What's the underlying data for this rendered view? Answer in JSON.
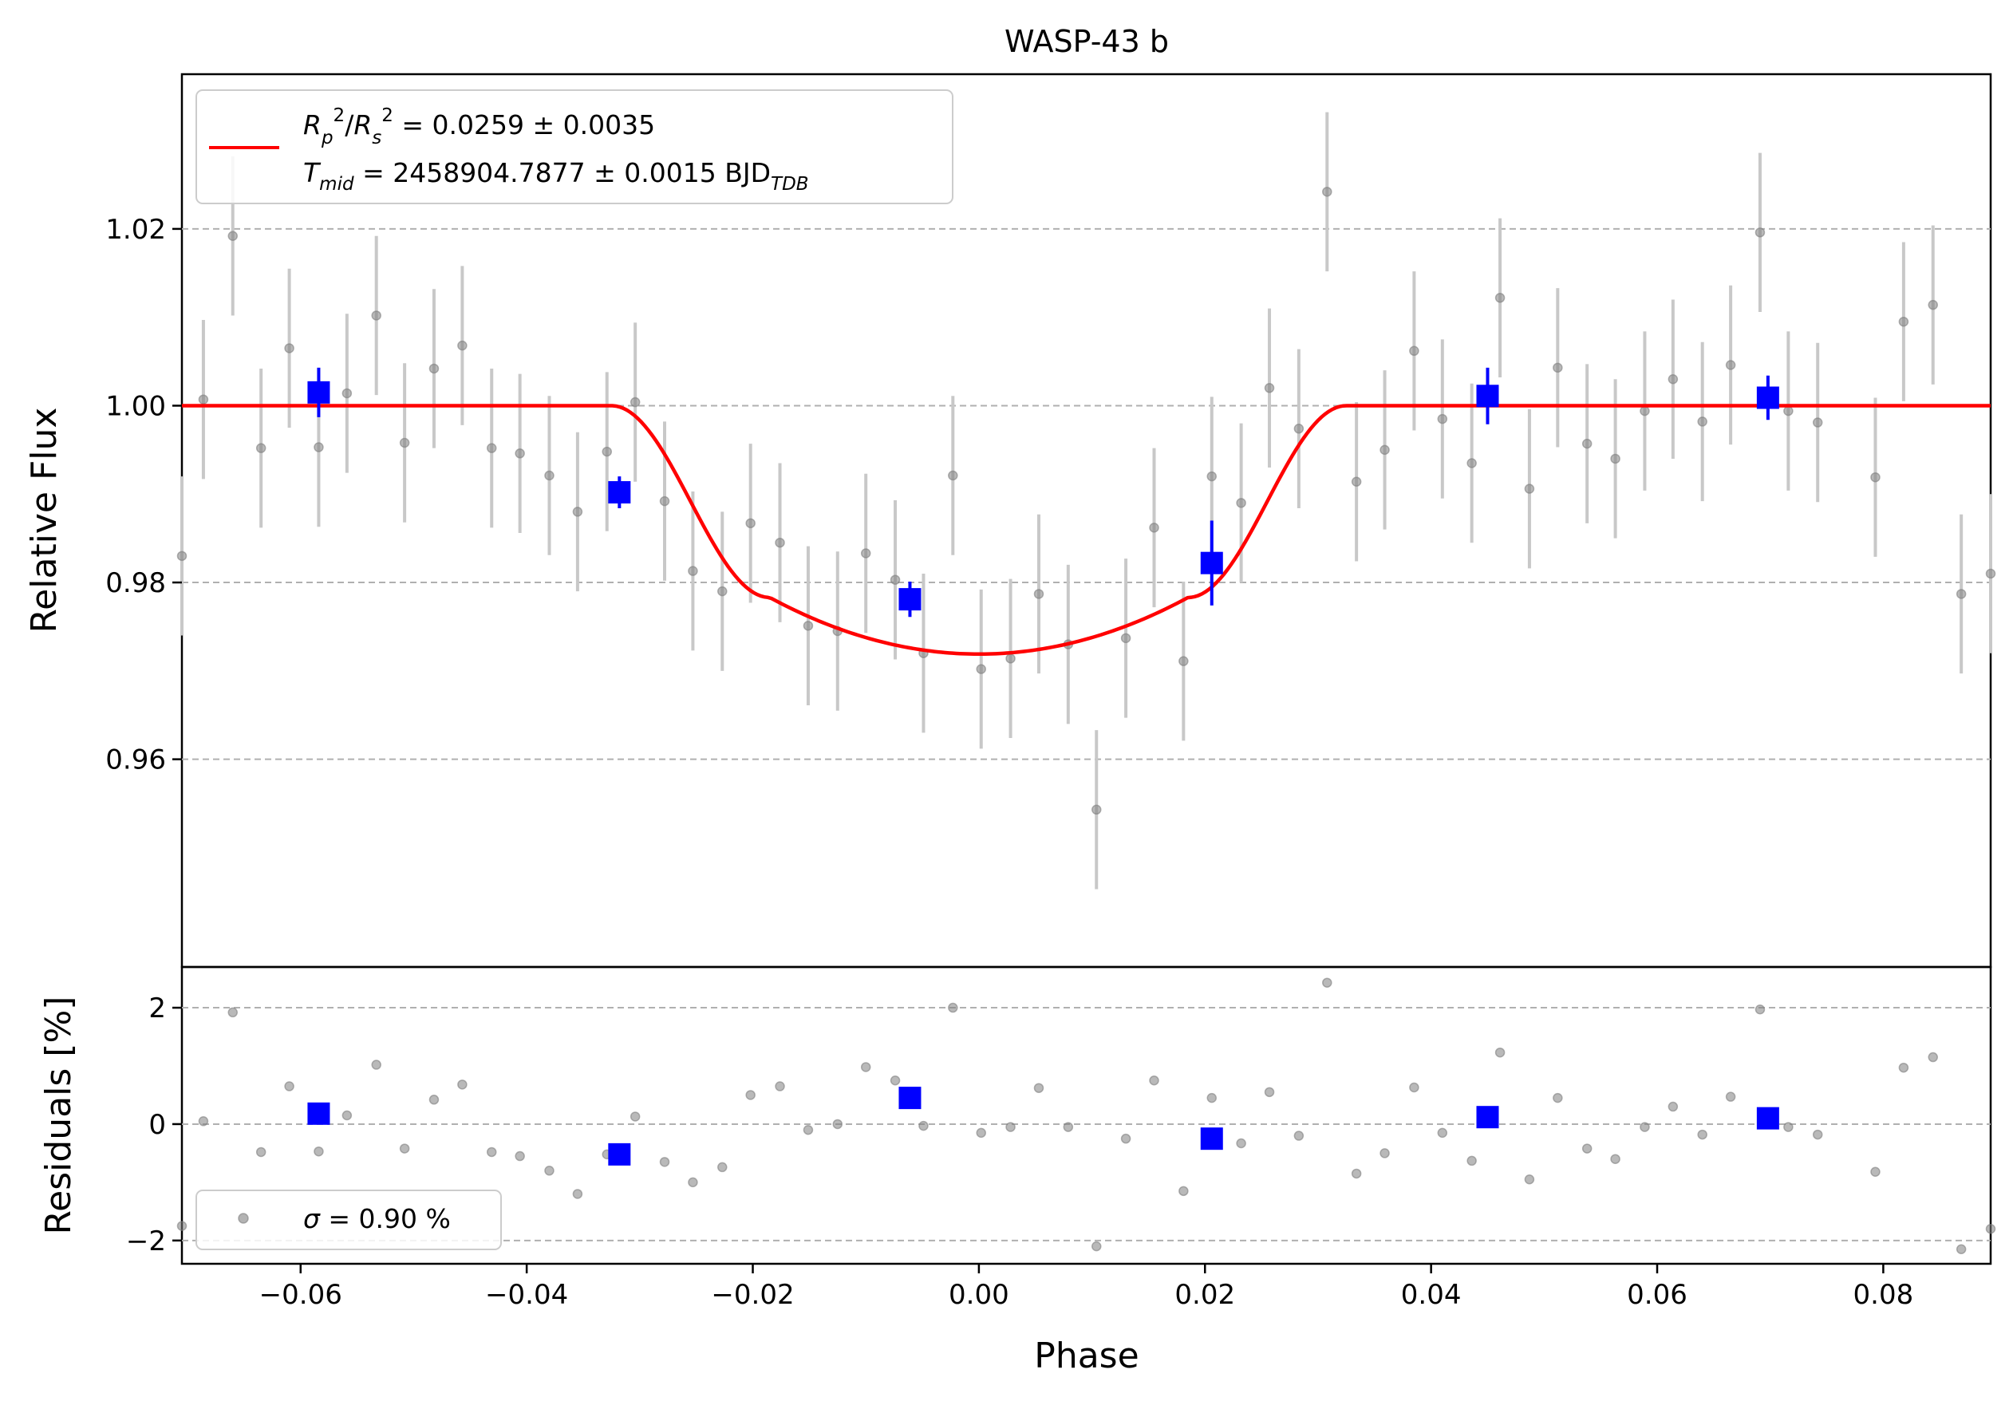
{
  "chart_data": {
    "type": "scatter",
    "title": "WASP-43 b",
    "xlabel": "Phase",
    "xlim": [
      -0.0705,
      0.0895
    ],
    "xticks": [
      "−0.06",
      "−0.04",
      "−0.02",
      "0.00",
      "0.02",
      "0.04",
      "0.06",
      "0.08"
    ],
    "xtick_values": [
      -0.06,
      -0.04,
      -0.02,
      0.0,
      0.02,
      0.04,
      0.06,
      0.08
    ],
    "top_panel": {
      "ylabel": "Relative Flux",
      "ylim": [
        0.9365,
        1.0375
      ],
      "yticks": [
        "0.96",
        "0.98",
        "1.00",
        "1.02"
      ],
      "ytick_values": [
        0.96,
        0.98,
        1.0,
        1.02
      ],
      "grid": "horizontal-dashed",
      "legend": {
        "placement": "top-left",
        "line1": {
          "R": "R",
          "p": "p",
          "two_a": "2",
          "slash": "/",
          "R2": "R",
          "s": "s",
          "two_b": "2",
          "rest": " = 0.0259 ± 0.0035"
        },
        "line2": {
          "T": "T",
          "mid": "mid",
          "rest": " = 2458904.7877 ± 0.0015 BJD",
          "tdb": "TDB"
        }
      },
      "model": {
        "name": "transit model",
        "color": "#ff0000",
        "t1": -0.0325,
        "t2": -0.0185,
        "t3": 0.0185,
        "t4": 0.0325,
        "baseline": 1.0,
        "depth_at_t2": 0.0217,
        "depth_center": 0.0281
      },
      "raw_data": {
        "color": "#808080",
        "x": [
          -0.0705,
          -0.0686,
          -0.066,
          -0.0635,
          -0.061,
          -0.0584,
          -0.0559,
          -0.0533,
          -0.0508,
          -0.0482,
          -0.0457,
          -0.0431,
          -0.0406,
          -0.038,
          -0.0355,
          -0.0329,
          -0.0304,
          -0.0278,
          -0.0253,
          -0.0227,
          -0.0202,
          -0.0176,
          -0.0151,
          -0.0125,
          -0.01,
          -0.0074,
          -0.0049,
          -0.0023,
          0.0002,
          0.0028,
          0.0053,
          0.0079,
          0.0104,
          0.013,
          0.0155,
          0.0181,
          0.0206,
          0.0232,
          0.0257,
          0.0283,
          0.0308,
          0.0334,
          0.0359,
          0.0385,
          0.041,
          0.0436,
          0.0461,
          0.0487,
          0.0512,
          0.0538,
          0.0563,
          0.0589,
          0.0614,
          0.064,
          0.0665,
          0.0691,
          0.0716,
          0.0742,
          0.0793,
          0.0818,
          0.0844,
          0.0869,
          0.0895
        ],
        "y": [
          0.983,
          1.0007,
          1.0192,
          0.9952,
          1.0065,
          0.9953,
          1.0014,
          1.0102,
          0.9958,
          1.0042,
          1.0068,
          0.9952,
          0.9946,
          0.9921,
          0.988,
          0.9948,
          1.0004,
          0.9892,
          0.9813,
          0.979,
          0.9867,
          0.9845,
          0.9751,
          0.9745,
          0.9833,
          0.9803,
          0.972,
          0.9921,
          0.9702,
          0.9714,
          0.9787,
          0.973,
          0.9543,
          0.9737,
          0.9862,
          0.9711,
          0.992,
          0.989,
          1.002,
          0.9974,
          1.0242,
          0.9914,
          0.995,
          1.0062,
          0.9985,
          0.9935,
          1.0122,
          0.9906,
          1.0043,
          0.9957,
          0.994,
          0.9994,
          1.003,
          0.9982,
          1.0046,
          1.0196,
          0.9994,
          0.9981,
          0.9919,
          1.0095,
          1.0114,
          0.9787,
          0.981
        ],
        "err": 0.009
      },
      "binned_data": {
        "color": "#0000ff",
        "x": [
          -0.0584,
          -0.0318,
          -0.0061,
          0.0206,
          0.045,
          0.0698
        ],
        "y": [
          1.0015,
          0.9902,
          0.9781,
          0.9822,
          1.0011,
          1.0009
        ],
        "err": [
          0.0028,
          0.0018,
          0.002,
          0.0048,
          0.0032,
          0.0025
        ]
      }
    },
    "bottom_panel": {
      "ylabel": "Residuals [%]",
      "ylim": [
        -2.4,
        2.7
      ],
      "yticks": [
        "−2",
        "0",
        "2"
      ],
      "ytick_values": [
        -2,
        0,
        2
      ],
      "grid": "horizontal-dashed",
      "legend": {
        "placement": "bottom-left",
        "sigma": "σ",
        "rest": " = 0.90 %"
      },
      "raw_residuals": [
        -1.75,
        0.05,
        1.92,
        -0.48,
        0.65,
        -0.47,
        0.15,
        1.02,
        -0.42,
        0.42,
        0.68,
        -0.48,
        -0.55,
        -0.8,
        -1.2,
        -0.52,
        0.13,
        -0.65,
        -1.0,
        -0.74,
        0.5,
        0.65,
        -0.1,
        0.0,
        0.98,
        0.75,
        -0.03,
        2.0,
        -0.15,
        -0.05,
        0.62,
        -0.05,
        -2.1,
        -0.25,
        0.75,
        -1.15,
        0.45,
        -0.33,
        0.55,
        -0.2,
        2.43,
        -0.85,
        -0.5,
        0.63,
        -0.15,
        -0.63,
        1.23,
        -0.95,
        0.45,
        -0.42,
        -0.6,
        -0.05,
        0.3,
        -0.18,
        0.47,
        1.97,
        -0.05,
        -0.18,
        -0.82,
        0.97,
        1.15,
        -2.15,
        -1.8
      ],
      "binned_residuals": [
        0.18,
        -0.52,
        0.45,
        -0.25,
        0.12,
        0.1
      ]
    }
  }
}
